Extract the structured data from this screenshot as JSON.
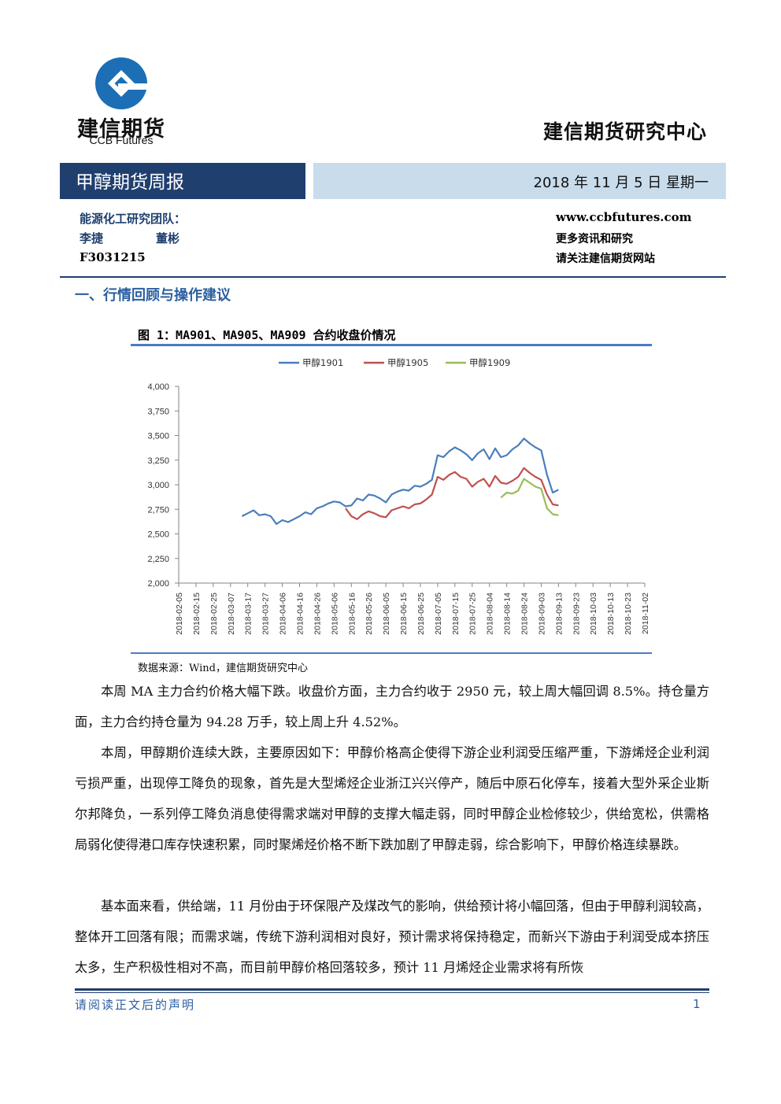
{
  "header": {
    "logo_cn": "建信期货",
    "logo_en": "CCB Futures",
    "center_name": "建信期货研究中心",
    "report_title": "甲醇期货周报",
    "date": "2018 年 11 月 5 日  星期一",
    "team_label": "能源化工研究团队：",
    "author1": "李捷",
    "author2": "董彬",
    "cert": "F3031215",
    "website": "www.ccbfutures.com",
    "more_line1": "更多资讯和研究",
    "more_line2": "请关注建信期货网站",
    "colors": {
      "navy": "#1f3f6e",
      "light_blue": "#c8dcec",
      "logo_blue": "#1c6fb5"
    }
  },
  "section_title": "一、行情回顾与操作建议",
  "figure": {
    "title": "图 1：MA901、MA905、MA909 合约收盘价情况",
    "source": "数据来源：Wind，建信期货研究中心"
  },
  "chart_data": {
    "type": "line",
    "x": [
      "2018-02-05",
      "2018-02-15",
      "2018-02-25",
      "2018-03-07",
      "2018-03-17",
      "2018-03-27",
      "2018-04-06",
      "2018-04-16",
      "2018-04-26",
      "2018-05-06",
      "2018-05-16",
      "2018-05-26",
      "2018-06-05",
      "2018-06-15",
      "2018-06-25",
      "2018-07-05",
      "2018-07-15",
      "2018-07-25",
      "2018-08-04",
      "2018-08-14",
      "2018-08-24",
      "2018-09-03",
      "2018-09-13",
      "2018-09-23",
      "2018-10-03",
      "2018-10-13",
      "2018-10-23",
      "2018-11-02"
    ],
    "yticks": [
      "4,000",
      "3,750",
      "3,500",
      "3,250",
      "3,000",
      "2,750",
      "2,500",
      "2,250",
      "2,000"
    ],
    "ylim": [
      2000,
      4000
    ],
    "series": [
      {
        "name": "甲醇1901",
        "color": "#4a7ebb",
        "points": [
          [
            11,
            2680
          ],
          [
            12,
            2710
          ],
          [
            13,
            2740
          ],
          [
            14,
            2690
          ],
          [
            15,
            2700
          ],
          [
            16,
            2680
          ],
          [
            17,
            2600
          ],
          [
            18,
            2640
          ],
          [
            19,
            2620
          ],
          [
            20,
            2650
          ],
          [
            21,
            2680
          ],
          [
            22,
            2720
          ],
          [
            23,
            2700
          ],
          [
            24,
            2760
          ],
          [
            25,
            2780
          ],
          [
            26,
            2810
          ],
          [
            27,
            2830
          ],
          [
            28,
            2820
          ],
          [
            29,
            2780
          ],
          [
            30,
            2790
          ],
          [
            31,
            2860
          ],
          [
            32,
            2840
          ],
          [
            33,
            2900
          ],
          [
            34,
            2890
          ],
          [
            35,
            2860
          ],
          [
            36,
            2820
          ],
          [
            37,
            2900
          ],
          [
            38,
            2930
          ],
          [
            39,
            2950
          ],
          [
            40,
            2940
          ],
          [
            41,
            2990
          ],
          [
            42,
            2980
          ],
          [
            43,
            3010
          ],
          [
            44,
            3050
          ],
          [
            45,
            3300
          ],
          [
            46,
            3280
          ],
          [
            47,
            3340
          ],
          [
            48,
            3380
          ],
          [
            49,
            3350
          ],
          [
            50,
            3310
          ],
          [
            51,
            3250
          ],
          [
            52,
            3320
          ],
          [
            53,
            3360
          ],
          [
            54,
            3260
          ],
          [
            55,
            3370
          ],
          [
            56,
            3280
          ],
          [
            57,
            3300
          ],
          [
            58,
            3360
          ],
          [
            59,
            3400
          ],
          [
            60,
            3470
          ],
          [
            61,
            3420
          ],
          [
            62,
            3380
          ],
          [
            63,
            3350
          ],
          [
            64,
            3100
          ],
          [
            65,
            2920
          ],
          [
            66,
            2950
          ]
        ]
      },
      {
        "name": "甲醇1905",
        "color": "#c0504d",
        "points": [
          [
            29,
            2760
          ],
          [
            30,
            2680
          ],
          [
            31,
            2650
          ],
          [
            32,
            2700
          ],
          [
            33,
            2730
          ],
          [
            34,
            2710
          ],
          [
            35,
            2680
          ],
          [
            36,
            2670
          ],
          [
            37,
            2740
          ],
          [
            38,
            2760
          ],
          [
            39,
            2780
          ],
          [
            40,
            2760
          ],
          [
            41,
            2800
          ],
          [
            42,
            2810
          ],
          [
            43,
            2850
          ],
          [
            44,
            2900
          ],
          [
            45,
            3080
          ],
          [
            46,
            3050
          ],
          [
            47,
            3100
          ],
          [
            48,
            3130
          ],
          [
            49,
            3080
          ],
          [
            50,
            3060
          ],
          [
            51,
            2980
          ],
          [
            52,
            3030
          ],
          [
            53,
            3060
          ],
          [
            54,
            2980
          ],
          [
            55,
            3090
          ],
          [
            56,
            3020
          ],
          [
            57,
            3010
          ],
          [
            58,
            3040
          ],
          [
            59,
            3080
          ],
          [
            60,
            3170
          ],
          [
            61,
            3120
          ],
          [
            62,
            3080
          ],
          [
            63,
            3050
          ],
          [
            64,
            2900
          ],
          [
            65,
            2800
          ],
          [
            66,
            2790
          ]
        ]
      },
      {
        "name": "甲醇1909",
        "color": "#9bbb59",
        "points": [
          [
            56,
            2870
          ],
          [
            57,
            2920
          ],
          [
            58,
            2910
          ],
          [
            59,
            2940
          ],
          [
            60,
            3060
          ],
          [
            61,
            3020
          ],
          [
            62,
            2980
          ],
          [
            63,
            2960
          ],
          [
            64,
            2760
          ],
          [
            65,
            2700
          ],
          [
            66,
            2690
          ]
        ]
      }
    ]
  },
  "paragraphs": [
    "本周 MA 主力合约价格大幅下跌。收盘价方面，主力合约收于 2950 元，较上周大幅回调 8.5%。持仓量方面，主力合约持仓量为 94.28 万手，较上周上升 4.52%。",
    "本周，甲醇期价连续大跌，主要原因如下：甲醇价格高企使得下游企业利润受压缩严重，下游烯烃企业利润亏损严重，出现停工降负的现象，首先是大型烯烃企业浙江兴兴停产，随后中原石化停车，接着大型外采企业斯尔邦降负，一系列停工降负消息使得需求端对甲醇的支撑大幅走弱，同时甲醇企业检修较少，供给宽松，供需格局弱化使得港口库存快速积累，同时聚烯烃价格不断下跌加剧了甲醇走弱，综合影响下，甲醇价格连续暴跌。",
    "基本面来看，供给端，11 月份由于环保限产及煤改气的影响，供给预计将小幅回落，但由于甲醇利润较高，整体开工回落有限；而需求端，传统下游利润相对良好，预计需求将保持稳定，而新兴下游由于利润受成本挤压太多，生产积极性相对不高，而目前甲醇价格回落较多，预计 11 月烯烃企业需求将有所恢"
  ],
  "footer": {
    "note": "请阅读正文后的声明",
    "page": "1"
  }
}
